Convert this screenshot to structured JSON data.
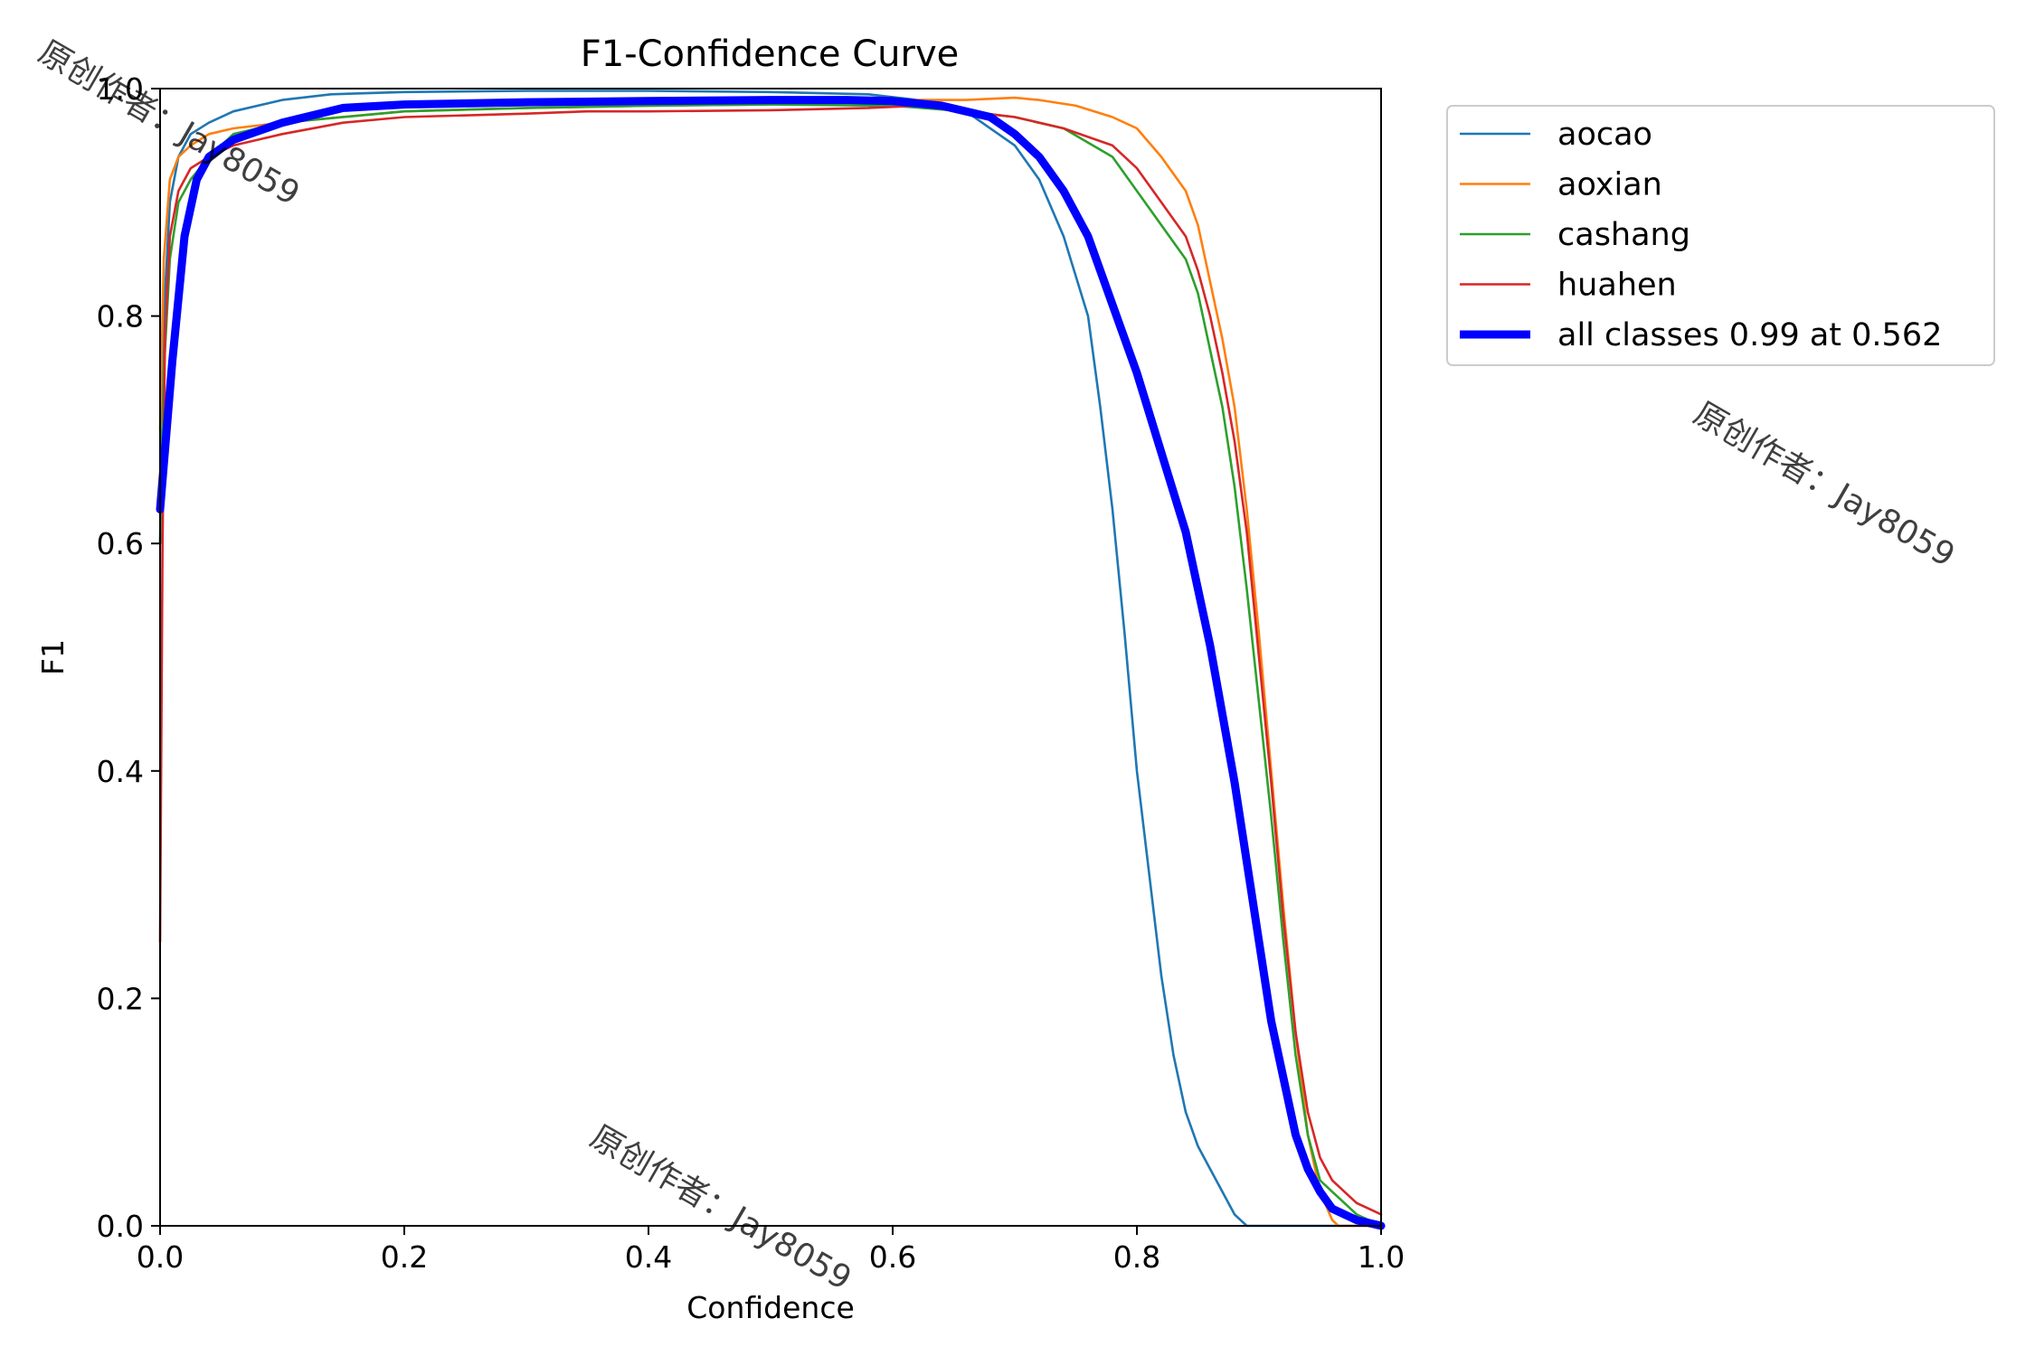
{
  "chart_data": {
    "type": "line",
    "title": "F1-Confidence Curve",
    "xlabel": "Confidence",
    "ylabel": "F1",
    "xlim": [
      0.0,
      1.0
    ],
    "ylim": [
      0.0,
      1.0
    ],
    "xticks": [
      "0.0",
      "0.2",
      "0.4",
      "0.6",
      "0.8",
      "1.0"
    ],
    "yticks": [
      "0.0",
      "0.2",
      "0.4",
      "0.6",
      "0.8",
      "1.0"
    ],
    "grid": false,
    "legend_position": "outside-upper-right",
    "series": [
      {
        "name": "aocao",
        "color": "#1f77b4",
        "x": [
          0.0,
          0.003,
          0.008,
          0.015,
          0.025,
          0.04,
          0.06,
          0.1,
          0.14,
          0.2,
          0.3,
          0.4,
          0.5,
          0.58,
          0.62,
          0.66,
          0.7,
          0.72,
          0.74,
          0.76,
          0.77,
          0.78,
          0.79,
          0.8,
          0.81,
          0.82,
          0.83,
          0.84,
          0.85,
          0.86,
          0.87,
          0.88,
          0.89,
          0.9,
          1.0
        ],
        "y": [
          0.6,
          0.8,
          0.9,
          0.94,
          0.96,
          0.97,
          0.98,
          0.99,
          0.995,
          0.997,
          0.998,
          0.998,
          0.997,
          0.995,
          0.99,
          0.98,
          0.95,
          0.92,
          0.87,
          0.8,
          0.72,
          0.63,
          0.52,
          0.4,
          0.31,
          0.22,
          0.15,
          0.1,
          0.07,
          0.05,
          0.03,
          0.01,
          0.0,
          0.0,
          0.0
        ]
      },
      {
        "name": "aoxian",
        "color": "#ff7f0e",
        "x": [
          0.0,
          0.003,
          0.008,
          0.015,
          0.025,
          0.04,
          0.06,
          0.1,
          0.2,
          0.3,
          0.4,
          0.5,
          0.6,
          0.66,
          0.7,
          0.72,
          0.75,
          0.78,
          0.8,
          0.82,
          0.84,
          0.85,
          0.86,
          0.87,
          0.88,
          0.89,
          0.9,
          0.91,
          0.92,
          0.93,
          0.94,
          0.95,
          0.96,
          0.965,
          1.0
        ],
        "y": [
          0.7,
          0.85,
          0.92,
          0.94,
          0.95,
          0.96,
          0.965,
          0.97,
          0.98,
          0.983,
          0.985,
          0.986,
          0.99,
          0.99,
          0.992,
          0.99,
          0.985,
          0.975,
          0.965,
          0.94,
          0.91,
          0.88,
          0.83,
          0.78,
          0.72,
          0.63,
          0.52,
          0.4,
          0.28,
          0.17,
          0.08,
          0.03,
          0.005,
          0.0,
          0.0
        ]
      },
      {
        "name": "cashang",
        "color": "#2ca02c",
        "x": [
          0.0,
          0.003,
          0.008,
          0.015,
          0.025,
          0.04,
          0.06,
          0.1,
          0.2,
          0.3,
          0.4,
          0.5,
          0.6,
          0.66,
          0.7,
          0.74,
          0.78,
          0.8,
          0.82,
          0.84,
          0.85,
          0.86,
          0.87,
          0.88,
          0.89,
          0.9,
          0.91,
          0.92,
          0.93,
          0.94,
          0.95,
          0.96,
          0.97,
          0.98,
          0.99,
          1.0
        ],
        "y": [
          0.6,
          0.75,
          0.85,
          0.9,
          0.92,
          0.94,
          0.96,
          0.97,
          0.98,
          0.983,
          0.985,
          0.986,
          0.985,
          0.98,
          0.975,
          0.965,
          0.94,
          0.91,
          0.88,
          0.85,
          0.82,
          0.77,
          0.72,
          0.65,
          0.56,
          0.46,
          0.36,
          0.25,
          0.15,
          0.08,
          0.04,
          0.03,
          0.02,
          0.01,
          0.005,
          0.0
        ]
      },
      {
        "name": "huahen",
        "color": "#d62728",
        "x": [
          0.0,
          0.002,
          0.004,
          0.008,
          0.015,
          0.025,
          0.04,
          0.06,
          0.08,
          0.1,
          0.15,
          0.2,
          0.3,
          0.35,
          0.4,
          0.5,
          0.58,
          0.62,
          0.66,
          0.7,
          0.74,
          0.78,
          0.8,
          0.82,
          0.84,
          0.85,
          0.86,
          0.87,
          0.88,
          0.89,
          0.9,
          0.91,
          0.92,
          0.93,
          0.94,
          0.95,
          0.96,
          0.97,
          0.98,
          0.99,
          1.0
        ],
        "y": [
          0.25,
          0.6,
          0.78,
          0.87,
          0.91,
          0.93,
          0.94,
          0.95,
          0.955,
          0.96,
          0.97,
          0.975,
          0.978,
          0.98,
          0.98,
          0.981,
          0.983,
          0.985,
          0.98,
          0.975,
          0.965,
          0.95,
          0.93,
          0.9,
          0.87,
          0.84,
          0.8,
          0.75,
          0.69,
          0.61,
          0.5,
          0.39,
          0.27,
          0.17,
          0.1,
          0.06,
          0.04,
          0.03,
          0.02,
          0.015,
          0.01
        ]
      },
      {
        "name": "all classes 0.99 at 0.562",
        "color": "#0000ff",
        "bold": true,
        "x": [
          0.0,
          0.01,
          0.02,
          0.03,
          0.04,
          0.06,
          0.1,
          0.15,
          0.2,
          0.3,
          0.4,
          0.5,
          0.562,
          0.6,
          0.64,
          0.68,
          0.7,
          0.72,
          0.74,
          0.76,
          0.78,
          0.8,
          0.82,
          0.84,
          0.86,
          0.88,
          0.9,
          0.91,
          0.92,
          0.93,
          0.94,
          0.95,
          0.96,
          0.98,
          1.0
        ],
        "y": [
          0.63,
          0.76,
          0.87,
          0.92,
          0.94,
          0.955,
          0.97,
          0.983,
          0.986,
          0.988,
          0.989,
          0.99,
          0.99,
          0.989,
          0.985,
          0.975,
          0.96,
          0.94,
          0.91,
          0.87,
          0.81,
          0.75,
          0.68,
          0.61,
          0.51,
          0.39,
          0.25,
          0.18,
          0.13,
          0.08,
          0.05,
          0.03,
          0.015,
          0.005,
          0.0
        ]
      }
    ]
  },
  "watermarks": [
    "原创作者：Jay8059",
    "原创作者：Jay8059",
    "原创作者：Jay8059"
  ]
}
